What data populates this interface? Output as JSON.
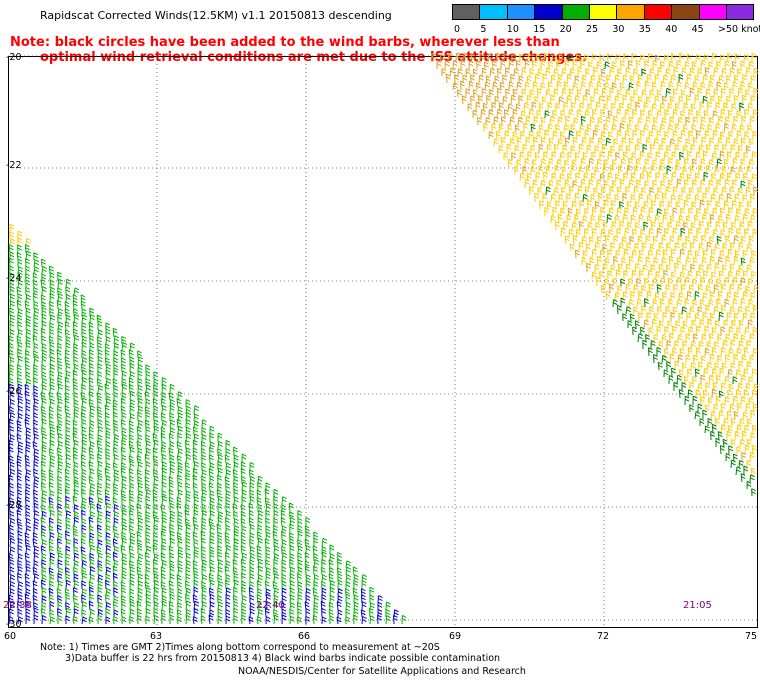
{
  "header": {
    "title": "Rapidscat Corrected Winds(12.5KM) v1.1 20150813 descending",
    "warning_line1": "Note: black circles have been added to the wind barbs, wherever less than",
    "warning_line2": "optimal wind retrieval conditions are met due to the ISS attitude changes."
  },
  "legend": {
    "labels": [
      "0",
      "5",
      "10",
      "15",
      "20",
      "25",
      "30",
      "35",
      "40",
      "45",
      ">50 knots"
    ],
    "colors": [
      "#606060",
      "#00bfff",
      "#1e90ff",
      "#0000cd",
      "#00b000",
      "#ffff00",
      "#ffa500",
      "#ff0000",
      "#8b4513",
      "#ff00ff",
      "#8a2be2"
    ]
  },
  "map": {
    "lat_labels": [
      "-20",
      "-22",
      "-24",
      "-26",
      "-28",
      "-30"
    ],
    "lon_labels": [
      "60",
      "63",
      "66",
      "69",
      "72",
      "75"
    ],
    "time_labels": [
      "22:38",
      "22:40",
      "21:05"
    ],
    "swath_colors": {
      "west_low": "#0000cd",
      "west_mid": "#00b000",
      "east_main": "#ffcc00",
      "east_orange": "#e0a020",
      "east_green": "#008000"
    }
  },
  "footer": {
    "note_line1": "Note: 1) Times are GMT 2)Times along bottom correspond to measurement at ~20S",
    "note_line2": "3)Data buffer is 22 hrs from 20150813 4) Black wind barbs indicate possible contamination",
    "credit": "NOAA/NESDIS/Center for Satellite Applications and Research"
  }
}
